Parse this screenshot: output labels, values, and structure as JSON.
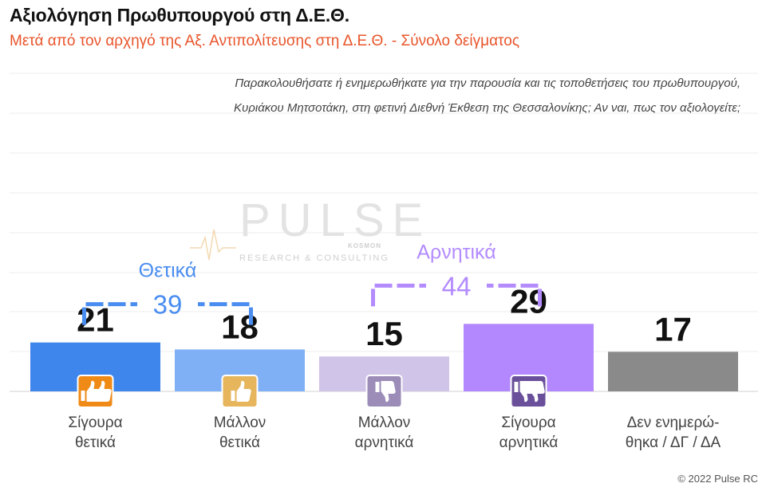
{
  "header": {
    "title": "Αξιολόγηση Πρωθυπουργού στη Δ.Ε.Θ.",
    "subtitle": "Μετά από τον αρχηγό της Αξ. Αντιπολίτευσης στη Δ.Ε.Θ.  -  Σύνολο δείγματος",
    "question_line1": "Παρακολουθήσατε ή ενημερωθήκατε για την παρουσία και τις τοποθετήσεις του πρωθυπουργού,",
    "question_line2": "Κυριάκου Μητσοτάκη, στη φετινή Διεθνή Έκθεση της Θεσσαλονίκης; Αν ναι, πως τον αξιολογείτε;"
  },
  "chart_data": {
    "type": "bar",
    "categories": [
      [
        "Σίγουρα",
        "θετικά"
      ],
      [
        "Μάλλον",
        "θετικά"
      ],
      [
        "Μάλλον",
        "αρνητικά"
      ],
      [
        "Σίγουρα",
        "αρνητικά"
      ],
      [
        "Δεν ενημερώ-",
        "θηκα / ΔΓ / ΔΑ"
      ]
    ],
    "values": [
      21,
      18,
      15,
      29,
      17
    ],
    "colors": [
      "#3e85ec",
      "#7fb0f5",
      "#d1c4e9",
      "#b388ff",
      "#8a8a8a"
    ],
    "icons": [
      "double-thumbs-up-icon",
      "thumbs-up-icon",
      "thumbs-down-icon",
      "double-thumbs-down-icon",
      null
    ],
    "icon_colors": [
      "#ef8a17",
      "#e6b55c",
      "#9b8cb8",
      "#6a4f9a",
      null
    ],
    "ylim": [
      0,
      40
    ],
    "grid": true,
    "groups": [
      {
        "label": "Θετικά",
        "total": "39",
        "from": 0,
        "to": 1,
        "color": "#4a8df0"
      },
      {
        "label": "Αρνητικά",
        "total": "44",
        "from": 2,
        "to": 3,
        "color": "#b38bff"
      }
    ]
  },
  "watermark": {
    "brand": "PULSE",
    "tagline": "RESEARCH & CONSULTING",
    "mark": "KOSMON"
  },
  "footer": "© 2022 Pulse RC"
}
